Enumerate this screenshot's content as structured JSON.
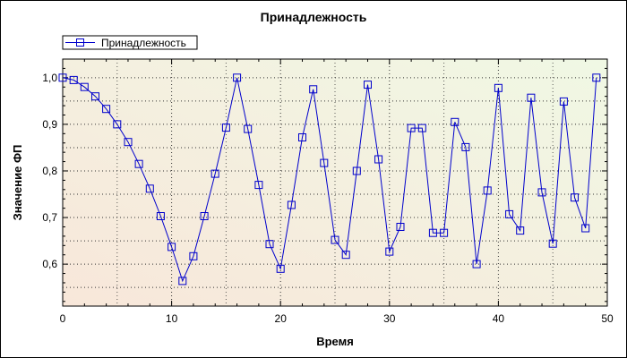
{
  "chart_data": {
    "type": "line",
    "title": "Принадлежность",
    "xlabel": "Время",
    "ylabel": "Значение ФП",
    "xlim": [
      0,
      50
    ],
    "ylim": [
      0.51,
      1.04
    ],
    "xticks": [
      0,
      10,
      20,
      30,
      40,
      50
    ],
    "xtick_labels": [
      "0",
      "10",
      "20",
      "30",
      "40",
      "50"
    ],
    "yticks": [
      0.6,
      0.7,
      0.8,
      0.9,
      1.0
    ],
    "ytick_labels": [
      "0,6",
      "0,7",
      "0,8",
      "0,9",
      "1,0"
    ],
    "grid": true,
    "legend_position": "top-left",
    "series": [
      {
        "name": "Принадлежность",
        "color": "#0000cc",
        "marker": "square",
        "x": [
          0,
          1,
          2,
          3,
          4,
          5,
          6,
          7,
          8,
          9,
          10,
          11,
          12,
          13,
          14,
          15,
          16,
          17,
          18,
          19,
          20,
          21,
          22,
          23,
          24,
          25,
          26,
          27,
          28,
          29,
          30,
          31,
          32,
          33,
          34,
          35,
          36,
          37,
          38,
          39,
          40,
          41,
          42,
          43,
          44,
          45,
          46,
          47,
          48,
          49
        ],
        "values": [
          1.0,
          0.995,
          0.98,
          0.96,
          0.933,
          0.9,
          0.862,
          0.815,
          0.762,
          0.703,
          0.637,
          0.564,
          0.617,
          0.703,
          0.794,
          0.893,
          1.0,
          0.89,
          0.77,
          0.643,
          0.59,
          0.727,
          0.872,
          0.975,
          0.817,
          0.652,
          0.62,
          0.8,
          0.985,
          0.825,
          0.627,
          0.68,
          0.892,
          0.892,
          0.667,
          0.667,
          0.905,
          0.851,
          0.6,
          0.758,
          0.978,
          0.707,
          0.672,
          0.957,
          0.754,
          0.644,
          0.949,
          0.743,
          0.677,
          1.0
        ]
      }
    ]
  },
  "colors": {
    "plot_gradient_start": "#f8e7da",
    "plot_gradient_end": "#f0f8e4",
    "grid": "#333333"
  }
}
